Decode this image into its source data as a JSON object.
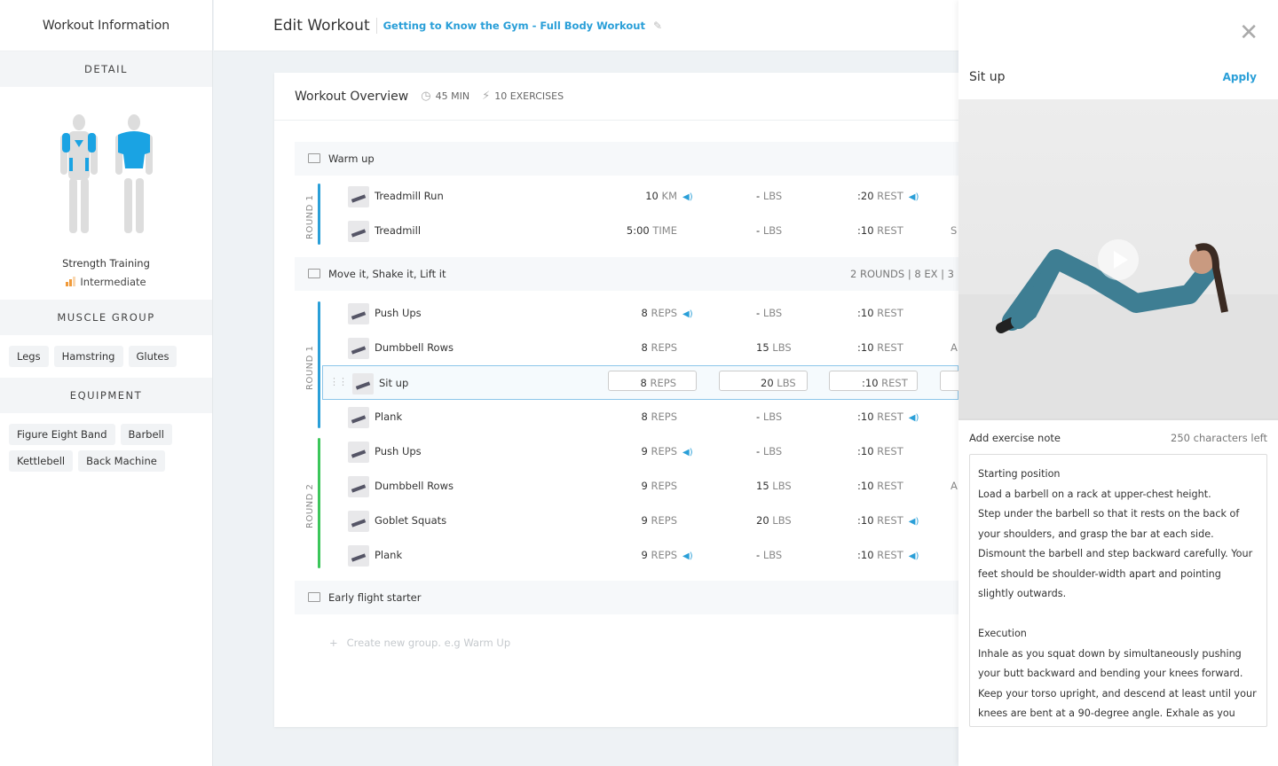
{
  "sidebar": {
    "title": "Workout Information",
    "detail_label": "DETAIL",
    "training_type": "Strength Training",
    "level": "Intermediate",
    "muscle_group_label": "MUSCLE GROUP",
    "muscles": [
      "Legs",
      "Hamstring",
      "Glutes"
    ],
    "equipment_label": "EQUIPMENT",
    "equipment": [
      "Figure Eight Band",
      "Barbell",
      "Kettlebell",
      "Back Machine"
    ]
  },
  "header": {
    "title": "Edit Workout",
    "workout_name": "Getting to Know the Gym - Full Body Workout"
  },
  "overview": {
    "title": "Workout Overview",
    "duration": "45 MIN",
    "exercises": "10 EXERCISES"
  },
  "groups": [
    {
      "name": "Warm up",
      "info": ""
    },
    {
      "name": "Move it, Shake it, Lift it",
      "info": "2 ROUNDS  |  8 EX  |  3"
    },
    {
      "name": "Early flight starter",
      "info": ""
    }
  ],
  "rounds": [
    "ROUND 1",
    "ROUND 1",
    "ROUND 2"
  ],
  "colors": {
    "accent": "#2a9fd8",
    "round1": "#2a9fd8",
    "round2": "#3cc65a",
    "level": "#f09a3a"
  },
  "rows": [
    {
      "name": "Treadmill Run",
      "reps": "10",
      "reps_unit": "KM",
      "reps_audio": true,
      "lbs": "-",
      "rest": ":20",
      "rest_audio": true,
      "extra": ""
    },
    {
      "name": "Treadmill",
      "reps": "5:00",
      "reps_unit": "TIME",
      "reps_audio": false,
      "lbs": "-",
      "rest": ":10",
      "rest_audio": false,
      "extra": "S"
    },
    {
      "name": "Push Ups",
      "reps": "8",
      "reps_unit": "REPS",
      "reps_audio": true,
      "lbs": "-",
      "rest": ":10",
      "rest_audio": false,
      "extra": ""
    },
    {
      "name": "Dumbbell Rows",
      "reps": "8",
      "reps_unit": "REPS",
      "reps_audio": false,
      "lbs": "15",
      "rest": ":10",
      "rest_audio": false,
      "extra": "A"
    },
    {
      "name": "Sit up",
      "reps": "8",
      "reps_unit": "REPS",
      "reps_audio": false,
      "lbs": "20",
      "rest": ":10",
      "rest_audio": false,
      "extra": "",
      "selected": true
    },
    {
      "name": "Plank",
      "reps": "8",
      "reps_unit": "REPS",
      "reps_audio": false,
      "lbs": "-",
      "rest": ":10",
      "rest_audio": true,
      "extra": ""
    },
    {
      "name": "Push Ups",
      "reps": "9",
      "reps_unit": "REPS",
      "reps_audio": true,
      "lbs": "-",
      "rest": ":10",
      "rest_audio": false,
      "extra": ""
    },
    {
      "name": "Dumbbell Rows",
      "reps": "9",
      "reps_unit": "REPS",
      "reps_audio": false,
      "lbs": "15",
      "rest": ":10",
      "rest_audio": false,
      "extra": "A"
    },
    {
      "name": "Goblet Squats",
      "reps": "9",
      "reps_unit": "REPS",
      "reps_audio": false,
      "lbs": "20",
      "rest": ":10",
      "rest_audio": true,
      "extra": ""
    },
    {
      "name": "Plank",
      "reps": "9",
      "reps_unit": "REPS",
      "reps_audio": true,
      "lbs": "-",
      "rest": ":10",
      "rest_audio": true,
      "extra": ""
    }
  ],
  "units": {
    "lbs": "LBS",
    "rest": "REST"
  },
  "new_group_placeholder": "Create new group. e.g Warm Up",
  "panel": {
    "exercise": "Sit up",
    "apply": "Apply",
    "note_label": "Add exercise note",
    "chars_left": "250 characters left",
    "note": "Starting position\nLoad a barbell on a rack at upper-chest height.\nStep under the barbell so that it rests on the back of your shoulders, and grasp the bar at each side. Dismount the barbell and step backward carefully. Your feet should be shoulder-width apart and pointing slightly outwards.\n\nExecution\nInhale as you squat down by simultaneously pushing your butt backward and bending your knees forward. Keep your torso upright, and descend at least until your knees are bent at a 90-degree angle. Exhale as you push your body back up to the starting position, driving through your heels"
  }
}
